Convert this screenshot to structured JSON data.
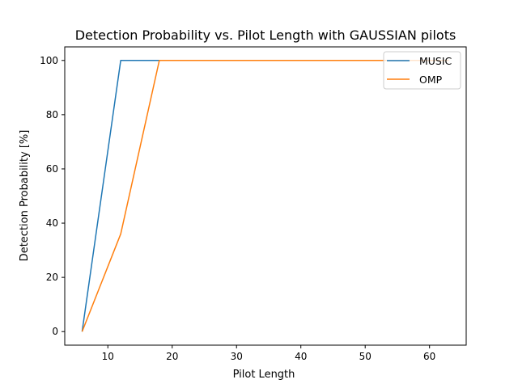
{
  "chart_data": {
    "type": "line",
    "title": "Detection Probability vs. Pilot Length with GAUSSIAN pilots",
    "xlabel": "Pilot Length",
    "ylabel": "Detection Probability [%]",
    "xlim": [
      3.3,
      65.7
    ],
    "ylim": [
      -5,
      105
    ],
    "xticks": [
      10,
      20,
      30,
      40,
      50,
      60
    ],
    "yticks": [
      0,
      20,
      40,
      60,
      80,
      100
    ],
    "grid": false,
    "legend_position": "top-right",
    "series": [
      {
        "name": "MUSIC",
        "color": "#1f77b4",
        "x": [
          6,
          12,
          18,
          24,
          30,
          36,
          42,
          48,
          54,
          60,
          63
        ],
        "y": [
          0,
          100,
          100,
          100,
          100,
          100,
          100,
          100,
          100,
          100,
          100
        ]
      },
      {
        "name": "OMP",
        "color": "#ff7f0e",
        "x": [
          6,
          12,
          18,
          24,
          30,
          36,
          42,
          48,
          54,
          60,
          63
        ],
        "y": [
          0,
          36,
          100,
          100,
          100,
          100,
          100,
          100,
          100,
          100,
          100
        ]
      }
    ]
  }
}
